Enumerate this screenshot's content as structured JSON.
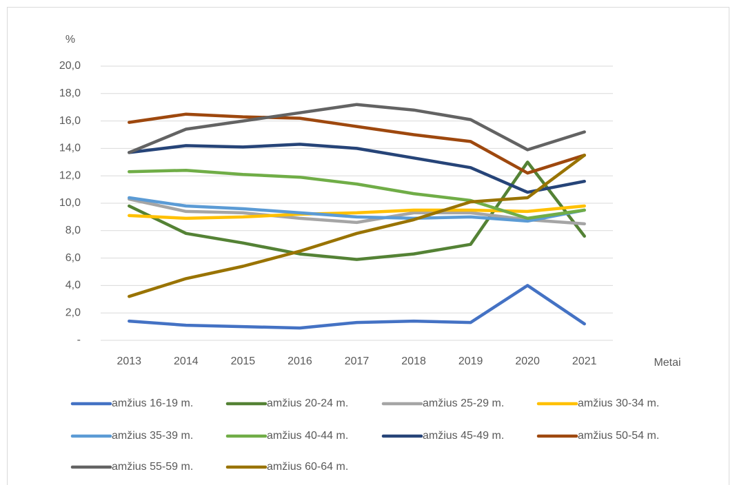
{
  "chart_data": {
    "type": "line",
    "y_label": "%",
    "x_label": "Metai",
    "categories": [
      "2013",
      "2014",
      "2015",
      "2016",
      "2017",
      "2018",
      "2019",
      "2020",
      "2021"
    ],
    "ylim": [
      0,
      20
    ],
    "yticks": [
      {
        "value": 0,
        "label": "-"
      },
      {
        "value": 2,
        "label": "2,0"
      },
      {
        "value": 4,
        "label": "4,0"
      },
      {
        "value": 6,
        "label": "6,0"
      },
      {
        "value": 8,
        "label": "8,0"
      },
      {
        "value": 10,
        "label": "10,0"
      },
      {
        "value": 12,
        "label": "12,0"
      },
      {
        "value": 14,
        "label": "14,0"
      },
      {
        "value": 16,
        "label": "16,0"
      },
      {
        "value": 18,
        "label": "18,0"
      },
      {
        "value": 20,
        "label": "20,0"
      }
    ],
    "grid": true,
    "legend": "bottom",
    "series": [
      {
        "name": "amžius 16-19 m.",
        "color": "#4472c4",
        "values": [
          1.4,
          1.1,
          1.0,
          0.9,
          1.3,
          1.4,
          1.3,
          4.0,
          1.2
        ]
      },
      {
        "name": "amžius 20-24 m.",
        "color": "#548235",
        "values": [
          9.8,
          7.8,
          7.1,
          6.3,
          5.9,
          6.3,
          7.0,
          13.0,
          7.6
        ]
      },
      {
        "name": "amžius 25-29 m.",
        "color": "#a5a5a5",
        "values": [
          10.3,
          9.4,
          9.3,
          8.9,
          8.6,
          9.3,
          9.3,
          8.8,
          8.5
        ]
      },
      {
        "name": "amžius 30-34 m.",
        "color": "#ffc000",
        "values": [
          9.1,
          8.9,
          9.0,
          9.2,
          9.3,
          9.5,
          9.5,
          9.4,
          9.8
        ]
      },
      {
        "name": "amžius 35-39 m.",
        "color": "#5b9bd5",
        "values": [
          10.4,
          9.8,
          9.6,
          9.3,
          9.0,
          8.9,
          9.0,
          8.7,
          9.5
        ]
      },
      {
        "name": "amžius 40-44 m.",
        "color": "#70ad47",
        "values": [
          12.3,
          12.4,
          12.1,
          11.9,
          11.4,
          10.7,
          10.2,
          8.9,
          9.5
        ]
      },
      {
        "name": "amžius 45-49 m.",
        "color": "#264478",
        "values": [
          13.7,
          14.2,
          14.1,
          14.3,
          14.0,
          13.3,
          12.6,
          10.8,
          11.6
        ]
      },
      {
        "name": "amžius 50-54 m.",
        "color": "#9e480e",
        "values": [
          15.9,
          16.5,
          16.3,
          16.2,
          15.6,
          15.0,
          14.5,
          12.2,
          13.5
        ]
      },
      {
        "name": "amžius 55-59 m.",
        "color": "#636363",
        "values": [
          13.7,
          15.4,
          16.0,
          16.6,
          17.2,
          16.8,
          16.1,
          13.9,
          15.2
        ]
      },
      {
        "name": "amžius 60-64 m.",
        "color": "#997300",
        "values": [
          3.2,
          4.5,
          5.4,
          6.5,
          7.8,
          8.8,
          10.1,
          10.4,
          13.5
        ]
      }
    ]
  }
}
